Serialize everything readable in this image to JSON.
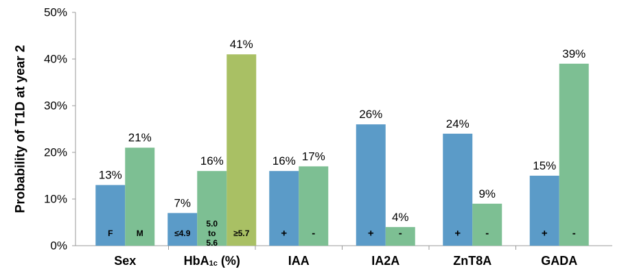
{
  "chart_data": {
    "type": "bar",
    "ylabel": "Probability of T1D at year 2",
    "ylim": [
      0,
      50
    ],
    "yticks": [
      "0%",
      "10%",
      "20%",
      "30%",
      "40%",
      "50%"
    ],
    "grid": false,
    "colors": {
      "blue": "#5b9bc8",
      "green": "#7dbf93",
      "olive": "#a9c064",
      "axis": "#999999"
    },
    "groups": [
      {
        "label": "Sex",
        "bars": [
          {
            "value": 13,
            "label": "13%",
            "inner": [
              "F"
            ],
            "color": "blue"
          },
          {
            "value": 21,
            "label": "21%",
            "inner": [
              "M"
            ],
            "color": "green"
          }
        ]
      },
      {
        "label": "HbA",
        "sub": "1c",
        "suffix": " (%)",
        "bars": [
          {
            "value": 7,
            "label": "7%",
            "inner": [
              "≤4.9"
            ],
            "color": "blue"
          },
          {
            "value": 16,
            "label": "16%",
            "inner": [
              "5.0",
              "to",
              "5.6"
            ],
            "color": "green"
          },
          {
            "value": 41,
            "label": "41%",
            "inner": [
              "≥5.7"
            ],
            "color": "olive"
          }
        ]
      },
      {
        "label": "IAA",
        "bars": [
          {
            "value": 16,
            "label": "16%",
            "inner": [
              "+"
            ],
            "color": "blue"
          },
          {
            "value": 17,
            "label": "17%",
            "inner": [
              "-"
            ],
            "color": "green"
          }
        ]
      },
      {
        "label": "IA2A",
        "bars": [
          {
            "value": 26,
            "label": "26%",
            "inner": [
              "+"
            ],
            "color": "blue"
          },
          {
            "value": 4,
            "label": "4%",
            "inner": [
              "-"
            ],
            "color": "green"
          }
        ]
      },
      {
        "label": "ZnT8A",
        "bars": [
          {
            "value": 24,
            "label": "24%",
            "inner": [
              "+"
            ],
            "color": "blue"
          },
          {
            "value": 9,
            "label": "9%",
            "inner": [
              "-"
            ],
            "color": "green"
          }
        ]
      },
      {
        "label": "GADA",
        "bars": [
          {
            "value": 15,
            "label": "15%",
            "inner": [
              "+"
            ],
            "color": "blue"
          },
          {
            "value": 39,
            "label": "39%",
            "inner": [
              "-"
            ],
            "color": "green"
          }
        ]
      }
    ]
  }
}
